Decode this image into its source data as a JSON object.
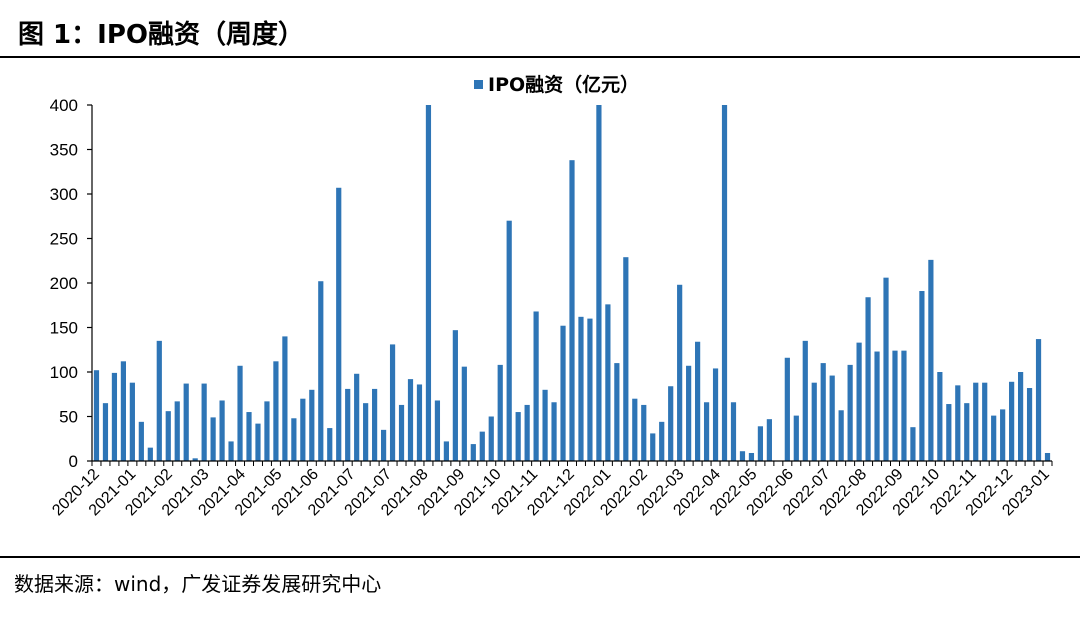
{
  "figure": {
    "title": "图 1：IPO融资（周度）",
    "source": "数据来源：wind，广发证券发展研究中心"
  },
  "colors": {
    "bar": "#2E75B6",
    "axis": "#000000"
  },
  "chart_data": {
    "type": "bar",
    "title": "",
    "xlabel": "",
    "ylabel": "",
    "ylim": [
      0,
      400
    ],
    "yticks": [
      0,
      50,
      100,
      150,
      200,
      250,
      300,
      350,
      400
    ],
    "legend_position": "top-center",
    "grid": false,
    "x_tick_labels": [
      "2020-12",
      "2021-01",
      "2021-02",
      "2021-03",
      "2021-04",
      "2021-05",
      "2021-06",
      "2021-07",
      "2021-07",
      "2021-08",
      "2021-09",
      "2021-10",
      "2021-11",
      "2021-12",
      "2022-01",
      "2022-02",
      "2022-03",
      "2022-04",
      "2022-05",
      "2022-06",
      "2022-07",
      "2022-08",
      "2022-09",
      "2022-10",
      "2022-11",
      "2022-12",
      "2023-01"
    ],
    "series": [
      {
        "name": "IPO融资（亿元）",
        "values": [
          102,
          65,
          99,
          112,
          88,
          44,
          15,
          135,
          56,
          67,
          87,
          3,
          87,
          49,
          68,
          22,
          107,
          55,
          42,
          67,
          112,
          140,
          48,
          70,
          80,
          202,
          37,
          307,
          81,
          98,
          65,
          81,
          35,
          131,
          63,
          92,
          86,
          400,
          68,
          22,
          147,
          106,
          19,
          33,
          50,
          108,
          270,
          55,
          63,
          168,
          80,
          66,
          152,
          338,
          162,
          160,
          400,
          176,
          110,
          229,
          70,
          63,
          31,
          44,
          84,
          198,
          107,
          134,
          66,
          104,
          400,
          66,
          11,
          9,
          39,
          47,
          0,
          116,
          51,
          135,
          88,
          110,
          96,
          57,
          108,
          133,
          184,
          123,
          206,
          124,
          124,
          38,
          191,
          226,
          100,
          64,
          85,
          65,
          88,
          88,
          51,
          58,
          89,
          100,
          82,
          137,
          9
        ]
      }
    ]
  }
}
